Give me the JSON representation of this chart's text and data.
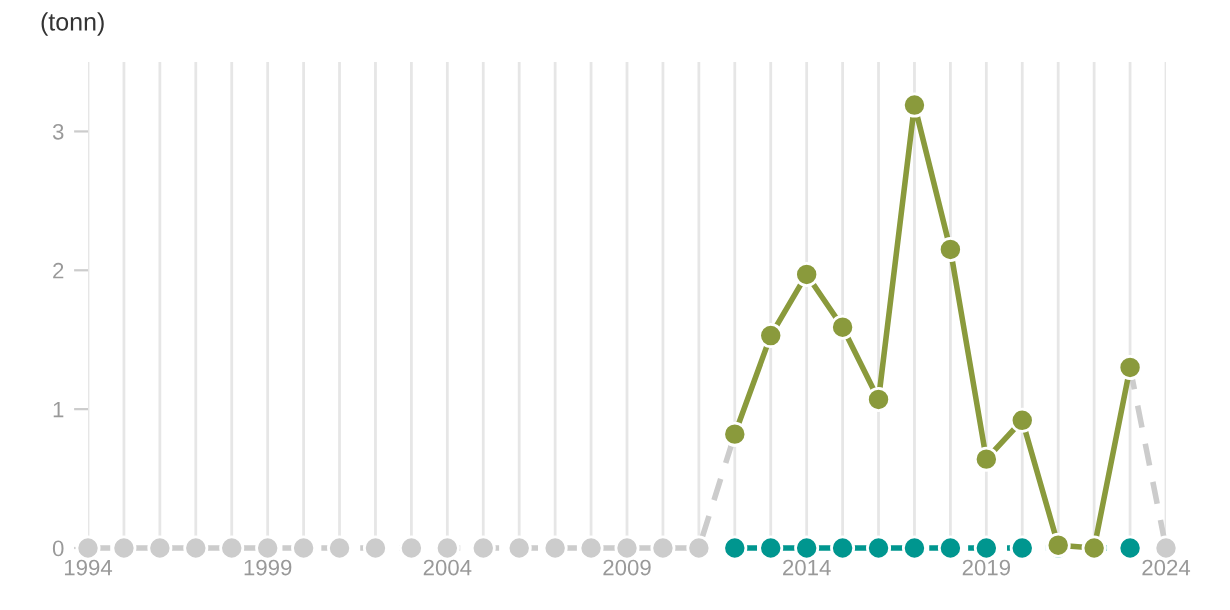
{
  "chart_data": {
    "type": "line",
    "ylabel": "(tonn)",
    "x": [
      1994,
      1995,
      1996,
      1997,
      1998,
      1999,
      2000,
      2001,
      2002,
      2003,
      2004,
      2005,
      2006,
      2007,
      2008,
      2009,
      2010,
      2011,
      2012,
      2013,
      2014,
      2015,
      2016,
      2017,
      2018,
      2019,
      2020,
      2021,
      2022,
      2023,
      2024
    ],
    "series": [
      {
        "color": "#cccccc",
        "line_style": "dashed",
        "values": [
          0,
          0,
          0,
          0,
          0,
          0,
          0,
          0,
          0,
          0,
          0,
          0,
          0,
          0,
          0,
          0,
          0,
          0,
          0.82,
          null,
          null,
          null,
          null,
          null,
          null,
          null,
          null,
          null,
          null,
          1.3,
          0
        ]
      },
      {
        "color": "#00968f",
        "line_style": "dashed",
        "x": [
          2012,
          2013,
          2014,
          2015,
          2016,
          2017,
          2018,
          2019,
          2020,
          2021,
          2022,
          2023
        ],
        "values": [
          0,
          0,
          0,
          0,
          0,
          0,
          0,
          0,
          0,
          0,
          0,
          0
        ]
      },
      {
        "color": "#8a9a3c",
        "line_style": "solid",
        "x": [
          2012,
          2013,
          2014,
          2015,
          2016,
          2017,
          2018,
          2019,
          2020,
          2021,
          2022,
          2023
        ],
        "values": [
          0.82,
          1.53,
          1.97,
          1.59,
          1.07,
          3.19,
          2.15,
          0.64,
          0.92,
          0.02,
          0,
          1.3
        ]
      }
    ],
    "xlim": [
      1994,
      2024
    ],
    "xticks": [
      1994,
      1999,
      2004,
      2009,
      2014,
      2019,
      2024
    ],
    "ylim": [
      0,
      3.5
    ],
    "yticks": [
      0,
      1,
      2,
      3
    ],
    "grid": "x",
    "marker": "circle",
    "legend": false
  }
}
